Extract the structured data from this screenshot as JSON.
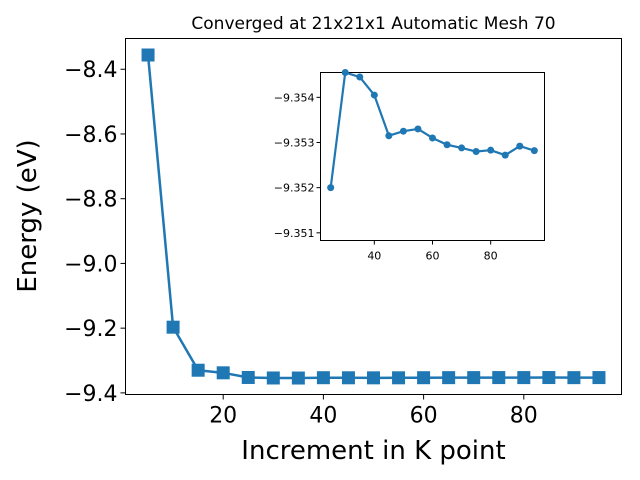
{
  "chart_data": [
    {
      "type": "line",
      "title": "Converged at 21x21x1 Automatic Mesh 70",
      "xlabel": "Increment in K point",
      "ylabel": "Energy (eV)",
      "xlim": [
        0.5,
        99.5
      ],
      "ylim": [
        -9.405,
        -8.305
      ],
      "xticks": [
        20,
        40,
        60,
        80
      ],
      "xtick_labels": [
        "20",
        "40",
        "60",
        "80"
      ],
      "yticks": [
        -8.4,
        -8.6,
        -8.8,
        -9.0,
        -9.2,
        -9.4
      ],
      "ytick_labels": [
        "−8.4",
        "−8.6",
        "−8.8",
        "−9.0",
        "−9.2",
        "−9.4"
      ],
      "marker": "square",
      "color": "#1f77b4",
      "x": [
        5,
        10,
        15,
        20,
        25,
        30,
        35,
        40,
        45,
        50,
        55,
        60,
        65,
        70,
        75,
        80,
        85,
        90,
        95
      ],
      "y": [
        -8.356,
        -9.197,
        -9.33,
        -9.338,
        -9.3524,
        -9.35395,
        -9.3541,
        -9.3531,
        -9.35335,
        -9.3535,
        -9.3534,
        -9.3531,
        -9.3529,
        -9.3528,
        -9.3527,
        -9.35275,
        -9.3526,
        -9.3529,
        -9.3527
      ]
    },
    {
      "type": "line",
      "title": "",
      "xlabel": "",
      "ylabel": "",
      "xlim": [
        21.5,
        98.5
      ],
      "ylim": [
        -9.35455,
        -9.35083
      ],
      "xticks": [
        40,
        60,
        80
      ],
      "xtick_labels": [
        "40",
        "60",
        "80"
      ],
      "yticks": [
        -9.354,
        -9.353,
        -9.352,
        -9.351
      ],
      "ytick_labels": [
        "−9.354",
        "−9.353",
        "−9.352",
        "−9.351"
      ],
      "y_inverted": true,
      "marker": "circle",
      "color": "#1f77b4",
      "x": [
        25,
        30,
        35,
        40,
        45,
        50,
        55,
        60,
        65,
        70,
        75,
        80,
        85,
        90,
        95
      ],
      "y": [
        -9.352,
        -9.35455,
        -9.35445,
        -9.35405,
        -9.35315,
        -9.35325,
        -9.3533,
        -9.3531,
        -9.35295,
        -9.35288,
        -9.3528,
        -9.35283,
        -9.35272,
        -9.35292,
        -9.35282
      ]
    }
  ]
}
